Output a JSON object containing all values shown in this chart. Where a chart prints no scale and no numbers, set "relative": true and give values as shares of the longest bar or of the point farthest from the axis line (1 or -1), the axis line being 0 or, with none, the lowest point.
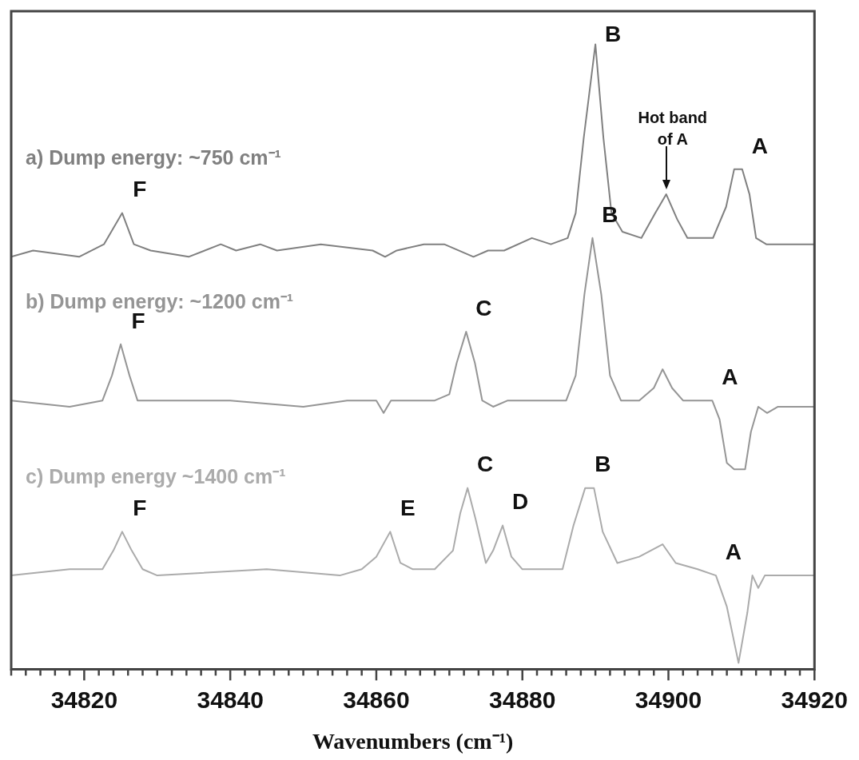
{
  "chart_data": {
    "type": "line",
    "relative": true,
    "xlabel": "Wavenumbers (cm⁻¹)",
    "xlim": [
      34810,
      34920
    ],
    "xticks": [
      {
        "value": 34810,
        "label": null
      },
      {
        "value": 34812,
        "label": null
      },
      {
        "value": 34814,
        "label": null
      },
      {
        "value": 34816,
        "label": null
      },
      {
        "value": 34818,
        "label": null
      },
      34820,
      {
        "value": 34822,
        "label": null
      },
      {
        "value": 34824,
        "label": null
      },
      {
        "value": 34826,
        "label": null
      },
      {
        "value": 34828,
        "label": null
      },
      {
        "value": 34830,
        "label": null
      },
      {
        "value": 34832,
        "label": null
      },
      {
        "value": 34834,
        "label": null
      },
      {
        "value": 34836,
        "label": null
      },
      {
        "value": 34838,
        "label": null
      },
      34840,
      {
        "value": 34842,
        "label": null
      },
      {
        "value": 34844,
        "label": null
      },
      {
        "value": 34846,
        "label": null
      },
      {
        "value": 34848,
        "label": null
      },
      {
        "value": 34850,
        "label": null
      },
      {
        "value": 34852,
        "label": null
      },
      {
        "value": 34854,
        "label": null
      },
      {
        "value": 34856,
        "label": null
      },
      {
        "value": 34858,
        "label": null
      },
      34860,
      {
        "value": 34862,
        "label": null
      },
      {
        "value": 34864,
        "label": null
      },
      {
        "value": 34866,
        "label": null
      },
      {
        "value": 34868,
        "label": null
      },
      {
        "value": 34870,
        "label": null
      },
      {
        "value": 34872,
        "label": null
      },
      {
        "value": 34874,
        "label": null
      },
      {
        "value": 34876,
        "label": null
      },
      {
        "value": 34878,
        "label": null
      },
      34880,
      {
        "value": 34882,
        "label": null
      },
      {
        "value": 34884,
        "label": null
      },
      {
        "value": 34886,
        "label": null
      },
      {
        "value": 34888,
        "label": null
      },
      {
        "value": 34890,
        "label": null
      },
      {
        "value": 34892,
        "label": null
      },
      {
        "value": 34894,
        "label": null
      },
      {
        "value": 34896,
        "label": null
      },
      {
        "value": 34898,
        "label": null
      },
      34900,
      {
        "value": 34902,
        "label": null
      },
      {
        "value": 34904,
        "label": null
      },
      {
        "value": 34906,
        "label": null
      },
      {
        "value": 34908,
        "label": null
      },
      {
        "value": 34910,
        "label": null
      },
      {
        "value": 34912,
        "label": null
      },
      {
        "value": 34914,
        "label": null
      },
      {
        "value": 34916,
        "label": null
      },
      {
        "value": 34918,
        "label": null
      },
      34920
    ],
    "marker": "none",
    "line_style": "solid",
    "series": [
      {
        "name": "a) Dump energy: ~750 cm⁻¹",
        "color": "#808080",
        "x": [
          34810,
          34813,
          34819.3,
          34822.7,
          34825.2,
          34826.8,
          34829.1,
          34834.3,
          34838.7,
          34840.8,
          34844.1,
          34846.4,
          34852.4,
          34859.5,
          34861.2,
          34862.8,
          34866.5,
          34869.3,
          34873.3,
          34875.3,
          34877.5,
          34881.3,
          34883.9,
          34886.2,
          34887.3,
          34888.4,
          34890,
          34891.1,
          34892.2,
          34893.7,
          34896.3,
          34898.2,
          34899.7,
          34901.2,
          34902.6,
          34906.1,
          34907.9,
          34909,
          34910.1,
          34911.1,
          34912,
          34913.4,
          34920
        ],
        "values": [
          0.66,
          0.67,
          0.66,
          0.68,
          0.73,
          0.68,
          0.67,
          0.66,
          0.68,
          0.67,
          0.68,
          0.67,
          0.68,
          0.67,
          0.66,
          0.67,
          0.68,
          0.68,
          0.66,
          0.67,
          0.67,
          0.69,
          0.68,
          0.69,
          0.73,
          0.85,
          1,
          0.85,
          0.73,
          0.7,
          0.69,
          0.73,
          0.76,
          0.72,
          0.69,
          0.69,
          0.74,
          0.8,
          0.8,
          0.76,
          0.69,
          0.68,
          0.68
        ]
      },
      {
        "name": "b) Dump energy: ~1200 cm⁻¹",
        "color": "#959595",
        "x": [
          34810,
          34818,
          34822.5,
          34823.8,
          34825,
          34826.2,
          34827.3,
          34830,
          34840,
          34850,
          34856,
          34860,
          34861,
          34862,
          34868,
          34870,
          34871,
          34872.3,
          34873.5,
          34874.5,
          34876,
          34878,
          34882,
          34886,
          34887.3,
          34888.5,
          34889.6,
          34890.8,
          34892,
          34893.5,
          34896,
          34898,
          34899.2,
          34900.5,
          34902,
          34906,
          34907,
          34908,
          34909,
          34910.5,
          34911.3,
          34912.3,
          34913.5,
          34915,
          34920
        ],
        "values": [
          0.43,
          0.42,
          0.43,
          0.47,
          0.52,
          0.47,
          0.43,
          0.43,
          0.43,
          0.42,
          0.43,
          0.43,
          0.41,
          0.43,
          0.43,
          0.44,
          0.49,
          0.54,
          0.49,
          0.43,
          0.42,
          0.43,
          0.43,
          0.43,
          0.47,
          0.6,
          0.69,
          0.6,
          0.47,
          0.43,
          0.43,
          0.45,
          0.48,
          0.45,
          0.43,
          0.43,
          0.4,
          0.33,
          0.32,
          0.32,
          0.38,
          0.42,
          0.41,
          0.42,
          0.42
        ]
      },
      {
        "name": "c) Dump energy ~1400 cm⁻¹",
        "color": "#ababab",
        "x": [
          34810,
          34818,
          34822.5,
          34824,
          34825.2,
          34826.5,
          34828,
          34830,
          34845,
          34855,
          34858,
          34860,
          34861.9,
          34863.3,
          34865,
          34868,
          34870.5,
          34871.5,
          34872.5,
          34873.6,
          34875,
          34876,
          34877.3,
          34878.5,
          34880,
          34883,
          34885.5,
          34887,
          34888.6,
          34889.8,
          34891,
          34893,
          34896,
          34899.2,
          34901,
          34904,
          34906.5,
          34908,
          34909.6,
          34910.8,
          34911.5,
          34912.3,
          34913.2,
          34920
        ],
        "values": [
          0.15,
          0.16,
          0.16,
          0.19,
          0.22,
          0.19,
          0.16,
          0.15,
          0.16,
          0.15,
          0.16,
          0.18,
          0.22,
          0.17,
          0.16,
          0.16,
          0.19,
          0.25,
          0.29,
          0.24,
          0.17,
          0.19,
          0.23,
          0.18,
          0.16,
          0.16,
          0.16,
          0.23,
          0.29,
          0.29,
          0.22,
          0.17,
          0.18,
          0.2,
          0.17,
          0.16,
          0.15,
          0.1,
          0.01,
          0.09,
          0.15,
          0.13,
          0.15,
          0.15
        ]
      }
    ],
    "annotations": [
      {
        "text": "F",
        "x": 34825.2,
        "y": 0.73
      },
      {
        "text": "B",
        "x": 34890,
        "y": 1
      },
      {
        "text": "Hot band\nof A",
        "x": 34899.7,
        "y": 0.76
      },
      {
        "text": "A",
        "x": 34910.1,
        "y": 0.8
      },
      {
        "text": "F",
        "x": 34825,
        "y": 0.52
      },
      {
        "text": "C",
        "x": 34872.3,
        "y": 0.54
      },
      {
        "text": "B",
        "x": 34889.6,
        "y": 0.69
      },
      {
        "text": "A",
        "x": 34906,
        "y": 0.43
      },
      {
        "text": "F",
        "x": 34825.2,
        "y": 0.22
      },
      {
        "text": "E",
        "x": 34861.9,
        "y": 0.22
      },
      {
        "text": "C",
        "x": 34872.5,
        "y": 0.29
      },
      {
        "text": "D",
        "x": 34877.3,
        "y": 0.23
      },
      {
        "text": "B",
        "x": 34888.6,
        "y": 0.29
      },
      {
        "text": "A",
        "x": 34906.5,
        "y": 0.15
      }
    ]
  }
}
